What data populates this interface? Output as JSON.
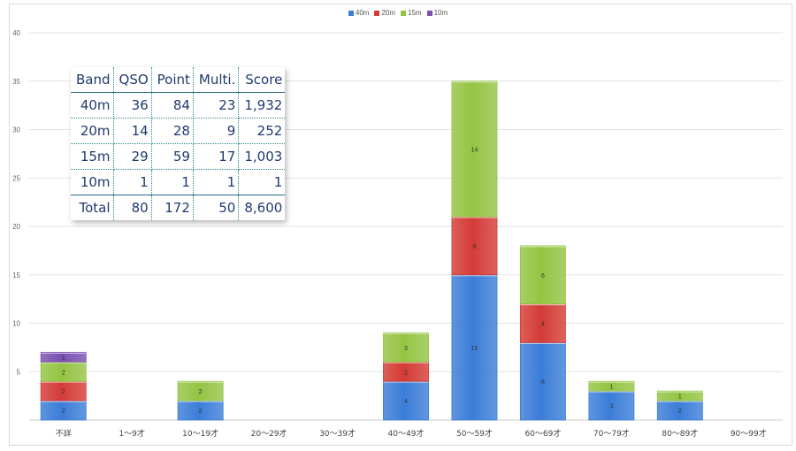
{
  "chart_data": {
    "type": "bar",
    "stacked": true,
    "categories": [
      "不詳",
      "1〜9才",
      "10〜19才",
      "20〜29才",
      "30〜39才",
      "40〜49才",
      "50〜59才",
      "60〜69才",
      "70〜79才",
      "80〜89才",
      "90〜99才"
    ],
    "series": [
      {
        "name": "40m",
        "color": "#3b7dd8",
        "values": [
          2,
          0,
          2,
          0,
          0,
          4,
          15,
          8,
          3,
          2,
          0
        ]
      },
      {
        "name": "20m",
        "color": "#d43b36",
        "values": [
          2,
          0,
          0,
          0,
          0,
          2,
          6,
          4,
          0,
          0,
          0
        ]
      },
      {
        "name": "15m",
        "color": "#94c443",
        "values": [
          2,
          0,
          2,
          0,
          0,
          3,
          14,
          6,
          1,
          1,
          0
        ]
      },
      {
        "name": "10m",
        "color": "#7a4fb0",
        "values": [
          1,
          0,
          0,
          0,
          0,
          0,
          0,
          0,
          0,
          0,
          0
        ]
      }
    ],
    "ylim": [
      0,
      40
    ],
    "yticks": [
      5,
      10,
      15,
      20,
      25,
      30,
      35,
      40
    ],
    "grid": true,
    "legend": "top-center",
    "title": "",
    "xlabel": "",
    "ylabel": ""
  },
  "table": {
    "headers": [
      "Band",
      "QSO",
      "Point",
      "Multi.",
      "Score"
    ],
    "rows": [
      [
        "40m",
        "36",
        "84",
        "23",
        "1,932"
      ],
      [
        "20m",
        "14",
        "28",
        "9",
        "252"
      ],
      [
        "15m",
        "29",
        "59",
        "17",
        "1,003"
      ],
      [
        "10m",
        "1",
        "1",
        "1",
        "1"
      ],
      [
        "Total",
        "80",
        "172",
        "50",
        "8,600"
      ]
    ]
  }
}
